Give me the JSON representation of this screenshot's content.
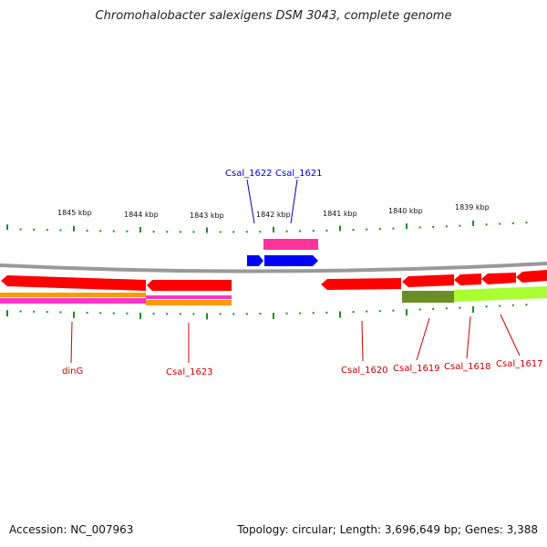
{
  "title": "Chromohalobacter salexigens DSM 3043, complete genome",
  "footer": {
    "accession": "Accession: NC_007963",
    "topology": "Topology: circular; Length: 3,696,649 bp; Genes: 3,388"
  },
  "colors": {
    "forward_gene": "#0000ff",
    "reverse_gene": "#ff0000",
    "pink_feature": "#ff3399",
    "orange_feature": "#ff9900",
    "magenta_feature": "#ff33cc",
    "olive_feature": "#6b8e23",
    "lime_feature": "#aaff33",
    "backbone": "#888888",
    "tick": "#228b22"
  },
  "ticks": {
    "labels": [
      "1845 kbp",
      "1844 kbp",
      "1843 kbp",
      "1842 kbp",
      "1841 kbp",
      "1840 kbp",
      "1839 kbp"
    ]
  },
  "genes": {
    "top": [
      {
        "name": "Csal_1622",
        "strand": "forward"
      },
      {
        "name": "Csal_1621",
        "strand": "forward"
      }
    ],
    "bottom": [
      {
        "name": "dinG",
        "strand": "reverse"
      },
      {
        "name": "Csal_1623",
        "strand": "reverse"
      },
      {
        "name": "Csal_1620",
        "strand": "reverse"
      },
      {
        "name": "Csal_1619",
        "strand": "reverse"
      },
      {
        "name": "Csal_1618",
        "strand": "reverse"
      },
      {
        "name": "Csal_1617",
        "strand": "reverse"
      }
    ]
  }
}
